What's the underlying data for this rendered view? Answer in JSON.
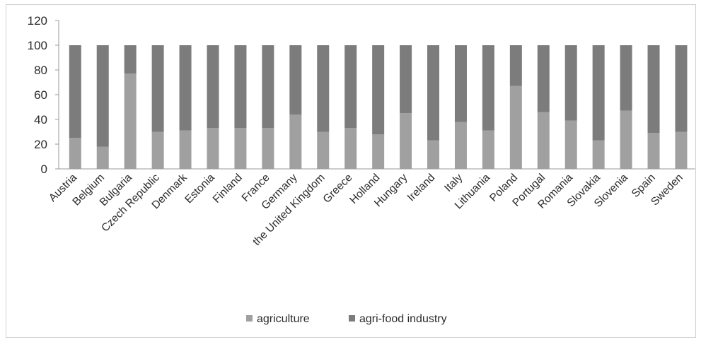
{
  "chart_data": {
    "type": "bar",
    "stacked": true,
    "categories": [
      "Austria",
      "Belgium",
      "Bulgaria",
      "Czech Republic",
      "Denmark",
      "Estonia",
      "Finland",
      "France",
      "Germany",
      "the United Kingdom",
      "Greece",
      "Holland",
      "Hungary",
      "Ireland",
      "Italy",
      "Lithuania",
      "Poland",
      "Portugal",
      "Romania",
      "Slovakia",
      "Slovenia",
      "Spain",
      "Sweden"
    ],
    "series": [
      {
        "name": "agriculture",
        "color": "#a0a0a0",
        "values": [
          25,
          18,
          77,
          30,
          31,
          33,
          33,
          33,
          44,
          30,
          33,
          28,
          45,
          23,
          38,
          31,
          67,
          46,
          39,
          23,
          47,
          29,
          30
        ]
      },
      {
        "name": "agri-food industry",
        "color": "#7c7c7c",
        "values": [
          75,
          82,
          23,
          70,
          69,
          67,
          67,
          67,
          56,
          70,
          67,
          72,
          55,
          77,
          62,
          69,
          33,
          54,
          61,
          77,
          53,
          71,
          70
        ]
      }
    ],
    "yticks": [
      "0",
      "20",
      "40",
      "60",
      "80",
      "100",
      "120"
    ],
    "ylim": [
      0,
      120
    ],
    "grid": false,
    "legend": "bottom",
    "title": "",
    "xlabel": "",
    "ylabel": ""
  }
}
